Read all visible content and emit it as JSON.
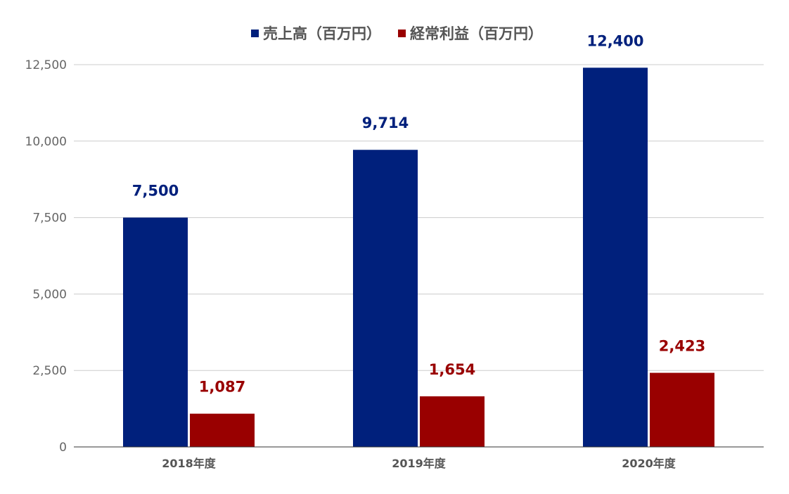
{
  "chart_data": {
    "type": "bar",
    "categories": [
      "2018年度",
      "2019年度",
      "2020年度"
    ],
    "series": [
      {
        "name": "売上高（百万円）",
        "values": [
          7500,
          9714,
          12400
        ],
        "labels": [
          "7,500",
          "9,714",
          "12,400"
        ],
        "color": "#00207c"
      },
      {
        "name": "経常利益（百万円）",
        "values": [
          1087,
          1654,
          2423
        ],
        "labels": [
          "1,087",
          "1,654",
          "2,423"
        ],
        "color": "#990000"
      }
    ],
    "y_ticks": [
      0,
      2500,
      5000,
      7500,
      10000,
      12500
    ],
    "y_tick_labels": [
      "0",
      "2,500",
      "5,000",
      "7,500",
      "10,000",
      "12,500"
    ],
    "ylim": [
      0,
      12500
    ],
    "grid": true,
    "legend_position": "top",
    "gridline_color": "#cccccc",
    "axis_color": "#333333"
  }
}
